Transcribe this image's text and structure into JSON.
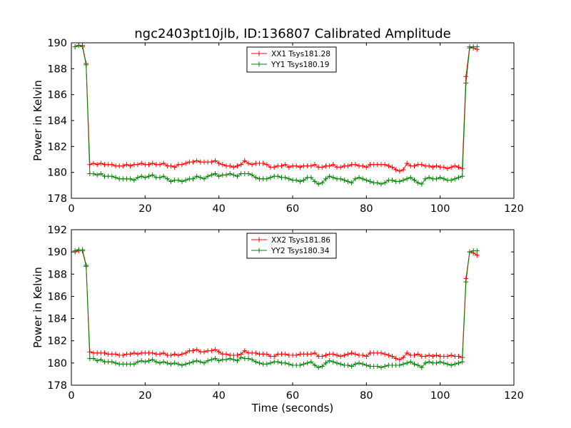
{
  "title": "ngc2403pt10jlb, ID:136807 Calibrated Amplitude",
  "colors": {
    "red": "#ff0000",
    "green": "#008000"
  },
  "chart_data": [
    {
      "type": "line",
      "ylabel": "Power in Kelvin",
      "xlabel": "",
      "xlim": [
        0,
        120
      ],
      "ylim": [
        178,
        190
      ],
      "xticks": [
        "0",
        "20",
        "40",
        "60",
        "80",
        "100",
        "120"
      ],
      "yticks": [
        "178",
        "180",
        "182",
        "184",
        "186",
        "188",
        "190"
      ],
      "legend_position": "top-center",
      "series": [
        {
          "name": "XX1 Tsys181.28",
          "color": "#ff0000",
          "x": [
            1,
            2,
            3,
            4,
            5,
            6,
            7,
            8,
            9,
            10,
            11,
            12,
            13,
            14,
            15,
            16,
            17,
            18,
            19,
            20,
            21,
            22,
            23,
            24,
            25,
            26,
            27,
            28,
            29,
            30,
            31,
            32,
            33,
            34,
            35,
            36,
            37,
            38,
            39,
            40,
            41,
            42,
            43,
            44,
            45,
            46,
            47,
            48,
            49,
            50,
            51,
            52,
            53,
            54,
            55,
            56,
            57,
            58,
            59,
            60,
            61,
            62,
            63,
            64,
            65,
            66,
            67,
            68,
            69,
            70,
            71,
            72,
            73,
            74,
            75,
            76,
            77,
            78,
            79,
            80,
            81,
            82,
            83,
            84,
            85,
            86,
            87,
            88,
            89,
            90,
            91,
            92,
            93,
            94,
            95,
            96,
            97,
            98,
            99,
            100,
            101,
            102,
            103,
            104,
            105,
            106,
            107,
            108,
            109,
            110
          ],
          "y": [
            189.7,
            189.8,
            189.8,
            188.4,
            180.6,
            180.7,
            180.6,
            180.7,
            180.6,
            180.6,
            180.6,
            180.5,
            180.5,
            180.5,
            180.6,
            180.5,
            180.6,
            180.6,
            180.7,
            180.6,
            180.6,
            180.7,
            180.6,
            180.6,
            180.7,
            180.5,
            180.5,
            180.4,
            180.6,
            180.6,
            180.7,
            180.8,
            180.8,
            180.9,
            180.8,
            180.8,
            180.8,
            180.8,
            180.9,
            180.7,
            180.6,
            180.5,
            180.5,
            180.4,
            180.5,
            180.6,
            180.9,
            180.7,
            180.6,
            180.7,
            180.7,
            180.7,
            180.6,
            180.4,
            180.4,
            180.5,
            180.5,
            180.6,
            180.4,
            180.5,
            180.5,
            180.4,
            180.5,
            180.5,
            180.5,
            180.6,
            180.4,
            180.4,
            180.5,
            180.5,
            180.6,
            180.4,
            180.4,
            180.5,
            180.5,
            180.6,
            180.6,
            180.5,
            180.5,
            180.4,
            180.6,
            180.6,
            180.6,
            180.6,
            180.6,
            180.5,
            180.4,
            180.2,
            180.1,
            180.2,
            180.7,
            180.5,
            180.5,
            180.6,
            180.6,
            180.5,
            180.5,
            180.4,
            180.5,
            180.4,
            180.4,
            180.3,
            180.4,
            180.5,
            180.4,
            180.3,
            187.4,
            189.7,
            189.6,
            189.5
          ]
        },
        {
          "name": "YY1 Tsys180.19",
          "color": "#008000",
          "x": [
            1,
            2,
            3,
            4,
            5,
            6,
            7,
            8,
            9,
            10,
            11,
            12,
            13,
            14,
            15,
            16,
            17,
            18,
            19,
            20,
            21,
            22,
            23,
            24,
            25,
            26,
            27,
            28,
            29,
            30,
            31,
            32,
            33,
            34,
            35,
            36,
            37,
            38,
            39,
            40,
            41,
            42,
            43,
            44,
            45,
            46,
            47,
            48,
            49,
            50,
            51,
            52,
            53,
            54,
            55,
            56,
            57,
            58,
            59,
            60,
            61,
            62,
            63,
            64,
            65,
            66,
            67,
            68,
            69,
            70,
            71,
            72,
            73,
            74,
            75,
            76,
            77,
            78,
            79,
            80,
            81,
            82,
            83,
            84,
            85,
            86,
            87,
            88,
            89,
            90,
            91,
            92,
            93,
            94,
            95,
            96,
            97,
            98,
            99,
            100,
            101,
            102,
            103,
            104,
            105,
            106,
            107,
            108,
            109,
            110
          ],
          "y": [
            189.7,
            189.8,
            189.7,
            188.3,
            179.9,
            179.9,
            179.8,
            179.9,
            179.7,
            179.7,
            179.7,
            179.6,
            179.5,
            179.5,
            179.5,
            179.5,
            179.4,
            179.6,
            179.7,
            179.6,
            179.7,
            179.8,
            179.6,
            179.6,
            179.7,
            179.5,
            179.3,
            179.4,
            179.4,
            179.3,
            179.4,
            179.5,
            179.5,
            179.7,
            179.6,
            179.5,
            179.7,
            179.8,
            179.9,
            179.7,
            179.8,
            179.8,
            179.9,
            179.8,
            179.7,
            179.9,
            179.9,
            179.9,
            179.8,
            179.6,
            179.5,
            179.5,
            179.5,
            179.6,
            179.7,
            179.7,
            179.6,
            179.6,
            179.5,
            179.4,
            179.4,
            179.3,
            179.4,
            179.6,
            179.6,
            179.3,
            179.1,
            179.2,
            179.5,
            179.7,
            179.6,
            179.5,
            179.5,
            179.4,
            179.3,
            179.2,
            179.5,
            179.6,
            179.5,
            179.4,
            179.3,
            179.2,
            179.2,
            179.1,
            179.2,
            179.4,
            179.4,
            179.3,
            179.3,
            179.4,
            179.5,
            179.6,
            179.4,
            179.2,
            179.1,
            179.5,
            179.6,
            179.5,
            179.5,
            179.6,
            179.5,
            179.4,
            179.4,
            179.5,
            179.6,
            179.7,
            186.9,
            189.6,
            189.7,
            189.7
          ]
        }
      ]
    },
    {
      "type": "line",
      "ylabel": "Power in Kelvin",
      "xlabel": "Time (seconds)",
      "xlim": [
        0,
        120
      ],
      "ylim": [
        178,
        192
      ],
      "xticks": [
        "0",
        "20",
        "40",
        "60",
        "80",
        "100",
        "120"
      ],
      "yticks": [
        "178",
        "180",
        "182",
        "184",
        "186",
        "188",
        "190",
        "192"
      ],
      "legend_position": "top-center",
      "series": [
        {
          "name": "XX2 Tsys181.86",
          "color": "#ff0000",
          "x": [
            1,
            2,
            3,
            4,
            5,
            6,
            7,
            8,
            9,
            10,
            11,
            12,
            13,
            14,
            15,
            16,
            17,
            18,
            19,
            20,
            21,
            22,
            23,
            24,
            25,
            26,
            27,
            28,
            29,
            30,
            31,
            32,
            33,
            34,
            35,
            36,
            37,
            38,
            39,
            40,
            41,
            42,
            43,
            44,
            45,
            46,
            47,
            48,
            49,
            50,
            51,
            52,
            53,
            54,
            55,
            56,
            57,
            58,
            59,
            60,
            61,
            62,
            63,
            64,
            65,
            66,
            67,
            68,
            69,
            70,
            71,
            72,
            73,
            74,
            75,
            76,
            77,
            78,
            79,
            80,
            81,
            82,
            83,
            84,
            85,
            86,
            87,
            88,
            89,
            90,
            91,
            92,
            93,
            94,
            95,
            96,
            97,
            98,
            99,
            100,
            101,
            102,
            103,
            104,
            105,
            106,
            107,
            108,
            109,
            110
          ],
          "y": [
            190.0,
            190.1,
            190.1,
            188.7,
            181.0,
            180.9,
            180.9,
            180.9,
            180.9,
            180.8,
            180.8,
            180.8,
            180.7,
            180.7,
            180.8,
            180.8,
            180.9,
            180.8,
            180.9,
            180.9,
            180.9,
            180.9,
            180.8,
            180.8,
            180.9,
            180.7,
            180.7,
            180.8,
            180.7,
            180.8,
            180.9,
            181.1,
            181.1,
            181.2,
            181.0,
            181.0,
            181.1,
            181.1,
            181.2,
            181.0,
            180.8,
            180.8,
            180.7,
            180.7,
            180.7,
            180.8,
            181.1,
            180.9,
            180.9,
            180.9,
            180.8,
            180.8,
            180.8,
            180.6,
            180.6,
            180.8,
            180.8,
            180.8,
            180.7,
            180.7,
            180.7,
            180.8,
            180.8,
            180.8,
            180.8,
            180.9,
            180.6,
            180.6,
            180.7,
            180.8,
            180.8,
            180.7,
            180.6,
            180.7,
            180.8,
            180.9,
            180.8,
            180.7,
            180.7,
            180.6,
            180.9,
            180.9,
            180.9,
            180.9,
            180.8,
            180.7,
            180.6,
            180.4,
            180.3,
            180.5,
            180.9,
            180.7,
            180.7,
            180.8,
            180.6,
            180.6,
            180.7,
            180.6,
            180.7,
            180.6,
            180.6,
            180.6,
            180.7,
            180.6,
            180.6,
            180.5,
            187.6,
            190.0,
            189.9,
            189.7
          ]
        },
        {
          "name": "YY2 Tsys180.34",
          "color": "#008000",
          "x": [
            1,
            2,
            3,
            4,
            5,
            6,
            7,
            8,
            9,
            10,
            11,
            12,
            13,
            14,
            15,
            16,
            17,
            18,
            19,
            20,
            21,
            22,
            23,
            24,
            25,
            26,
            27,
            28,
            29,
            30,
            31,
            32,
            33,
            34,
            35,
            36,
            37,
            38,
            39,
            40,
            41,
            42,
            43,
            44,
            45,
            46,
            47,
            48,
            49,
            50,
            51,
            52,
            53,
            54,
            55,
            56,
            57,
            58,
            59,
            60,
            61,
            62,
            63,
            64,
            65,
            66,
            67,
            68,
            69,
            70,
            71,
            72,
            73,
            74,
            75,
            76,
            77,
            78,
            79,
            80,
            81,
            82,
            83,
            84,
            85,
            86,
            87,
            88,
            89,
            90,
            91,
            92,
            93,
            94,
            95,
            96,
            97,
            98,
            99,
            100,
            101,
            102,
            103,
            104,
            105,
            106,
            107,
            108,
            109,
            110
          ],
          "y": [
            190.1,
            190.2,
            190.2,
            188.8,
            180.4,
            180.4,
            180.2,
            180.3,
            180.1,
            180.1,
            180.1,
            180.0,
            179.9,
            179.9,
            179.9,
            179.9,
            179.9,
            180.1,
            180.2,
            180.1,
            180.2,
            180.3,
            180.1,
            180.0,
            180.1,
            180.0,
            179.9,
            180.0,
            179.9,
            179.8,
            179.9,
            180.0,
            180.1,
            180.2,
            180.1,
            180.0,
            180.2,
            180.3,
            180.4,
            180.2,
            180.3,
            180.3,
            180.4,
            180.3,
            180.2,
            180.5,
            180.4,
            180.4,
            180.3,
            180.1,
            180.0,
            179.9,
            179.9,
            180.0,
            180.1,
            180.1,
            180.0,
            180.0,
            179.9,
            179.8,
            179.8,
            179.8,
            179.9,
            180.0,
            180.1,
            179.8,
            179.6,
            179.7,
            180.0,
            180.2,
            180.1,
            180.0,
            179.9,
            179.8,
            179.8,
            179.7,
            179.9,
            180.0,
            179.9,
            179.8,
            179.7,
            179.7,
            179.7,
            179.6,
            179.7,
            179.8,
            179.8,
            179.8,
            179.8,
            179.9,
            180.0,
            180.1,
            179.9,
            179.8,
            179.6,
            180.0,
            180.1,
            180.0,
            180.0,
            180.1,
            180.0,
            179.9,
            179.8,
            179.9,
            180.0,
            180.1,
            187.3,
            190.0,
            190.1,
            190.1
          ]
        }
      ]
    }
  ]
}
